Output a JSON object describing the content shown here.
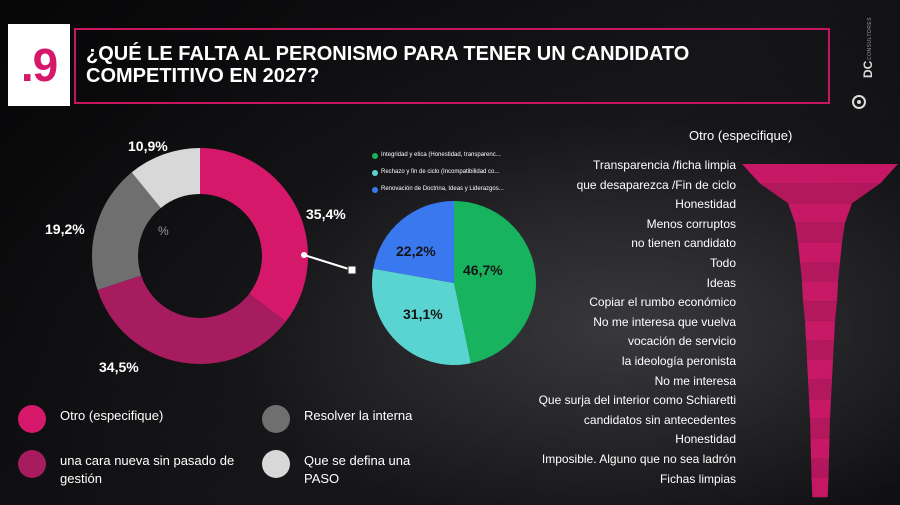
{
  "header": {
    "number": ".9",
    "title": "¿QUÉ LE FALTA AL PERONISMO PARA TENER UN CANDIDATO COMPETITIVO EN 2027?"
  },
  "brand": {
    "name": "DC",
    "tagline": "CONSULTORES"
  },
  "colors": {
    "accent": "#c8155f",
    "magenta": "#d6186b",
    "dark_magenta": "#a71c5e",
    "gray": "#6f6f6f",
    "light_gray": "#d8d8d8",
    "green": "#17b35e",
    "teal": "#5ad4d0",
    "blue": "#3a78f0"
  },
  "chart_data": [
    {
      "type": "pie",
      "subtype": "donut",
      "slices": [
        {
          "label": "Otro (especifique)",
          "value": 35.4,
          "display": "35,4%",
          "color": "#d6186b"
        },
        {
          "label": "una cara nueva sin pasado de gestión",
          "value": 34.5,
          "display": "34,5%",
          "color": "#a71c5e"
        },
        {
          "label": "Resolver la interna",
          "value": 19.2,
          "display": "19,2%",
          "color": "#6f6f6f"
        },
        {
          "label": "Que se defina una PASO",
          "value": 10.9,
          "display": "10,9%",
          "color": "#d8d8d8"
        }
      ],
      "center_fragment": "%"
    },
    {
      "type": "pie",
      "slices": [
        {
          "label": "Integridad y etica (Honestidad, transparenc...",
          "value": 46.7,
          "display": "46,7%",
          "color": "#17b35e"
        },
        {
          "label": "Rechazo y fin de ciclo (Incompatibilidad co...",
          "value": 31.1,
          "display": "31,1%",
          "color": "#5ad4d0"
        },
        {
          "label": "Renovación de Doctrina, Ideas y Liderazgos...",
          "value": 22.2,
          "display": "22,2%",
          "color": "#3a78f0"
        }
      ]
    },
    {
      "type": "funnel",
      "title": "Otro (especifique)",
      "categories": [
        "Transparencia /ficha limpia",
        "que desaparezca /Fin de ciclo",
        "Honestidad",
        "Menos corruptos",
        "no tienen candidato",
        "Todo",
        "Ideas",
        "Copiar el rumbo económico",
        "No me interesa que vuelva",
        "vocación de servicio",
        "la ideología peronista",
        "No me interesa",
        "Que surja del interior como Schiaretti",
        "candidatos sin antecedentes",
        "Honestidad",
        "Imposible. Alguno que no sea ladrón",
        "Fichas limpias"
      ]
    }
  ]
}
